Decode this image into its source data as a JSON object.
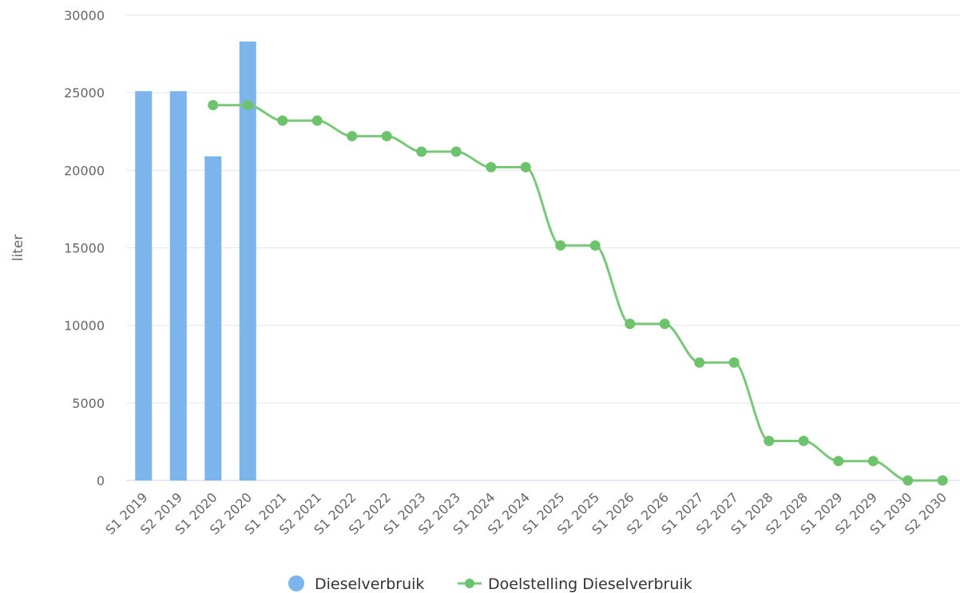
{
  "chart_data": {
    "type": "bar",
    "title": "",
    "xlabel": "",
    "ylabel": "liter",
    "ylim": [
      0,
      30000
    ],
    "yticks": [
      0,
      5000,
      10000,
      15000,
      20000,
      25000,
      30000
    ],
    "grid": true,
    "legend_position": "bottom-center",
    "categories": [
      "S1 2019",
      "S2 2019",
      "S1 2020",
      "S2 2020",
      "S1 2021",
      "S2 2021",
      "S1 2022",
      "S2 2022",
      "S1 2023",
      "S2 2023",
      "S1 2024",
      "S2 2024",
      "S1 2025",
      "S2 2025",
      "S1 2026",
      "S2 2026",
      "S1 2027",
      "S2 2027",
      "S1 2028",
      "S2 2028",
      "S1 2029",
      "S2 2029",
      "S1 2030",
      "S2 2030"
    ],
    "series": [
      {
        "name": "Dieselverbruik",
        "type": "bar",
        "color": "#7cb5ec",
        "values": [
          25100,
          25100,
          20900,
          28300,
          null,
          null,
          null,
          null,
          null,
          null,
          null,
          null,
          null,
          null,
          null,
          null,
          null,
          null,
          null,
          null,
          null,
          null,
          null,
          null
        ]
      },
      {
        "name": "Doelstelling Dieselverbruik",
        "type": "line",
        "color": "#78c878",
        "values": [
          null,
          null,
          24200,
          24200,
          23200,
          23200,
          22200,
          22200,
          21200,
          21200,
          20200,
          20200,
          15150,
          15150,
          10100,
          10100,
          7600,
          7600,
          2550,
          2550,
          1250,
          1250,
          0,
          0
        ]
      }
    ]
  }
}
